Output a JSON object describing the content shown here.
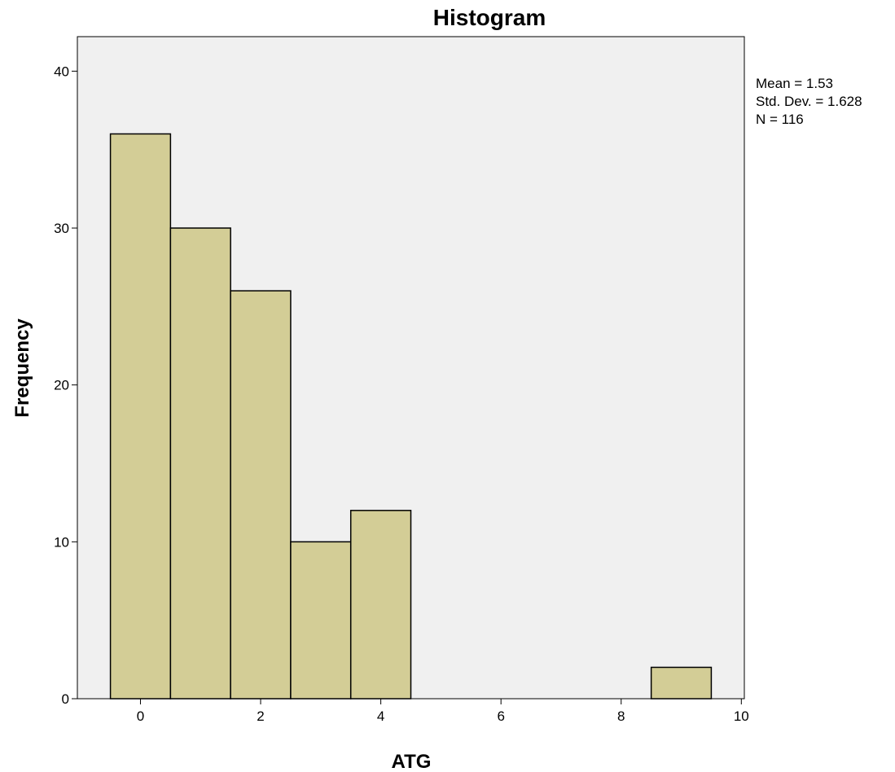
{
  "chart_data": {
    "type": "bar",
    "title": "Histogram",
    "xlabel": "ATG",
    "ylabel": "Frequency",
    "bins": [
      {
        "x_start": -0.5,
        "x_end": 0.5,
        "count": 36
      },
      {
        "x_start": 0.5,
        "x_end": 1.5,
        "count": 30
      },
      {
        "x_start": 1.5,
        "x_end": 2.5,
        "count": 26
      },
      {
        "x_start": 2.5,
        "x_end": 3.5,
        "count": 10
      },
      {
        "x_start": 3.5,
        "x_end": 4.5,
        "count": 12
      },
      {
        "x_start": 8.5,
        "x_end": 9.5,
        "count": 2
      }
    ],
    "xticks": [
      0,
      2,
      4,
      6,
      8,
      10
    ],
    "yticks": [
      0,
      10,
      20,
      30,
      40
    ],
    "xlim": [
      -1.05,
      10.05
    ],
    "ylim": [
      0,
      42.2
    ],
    "grid": false,
    "bar_color": "#d3cd96",
    "plot_background": "#f0f0f0",
    "stats": [
      "Mean = 1.53",
      "Std. Dev. = 1.628",
      "N = 116"
    ]
  }
}
